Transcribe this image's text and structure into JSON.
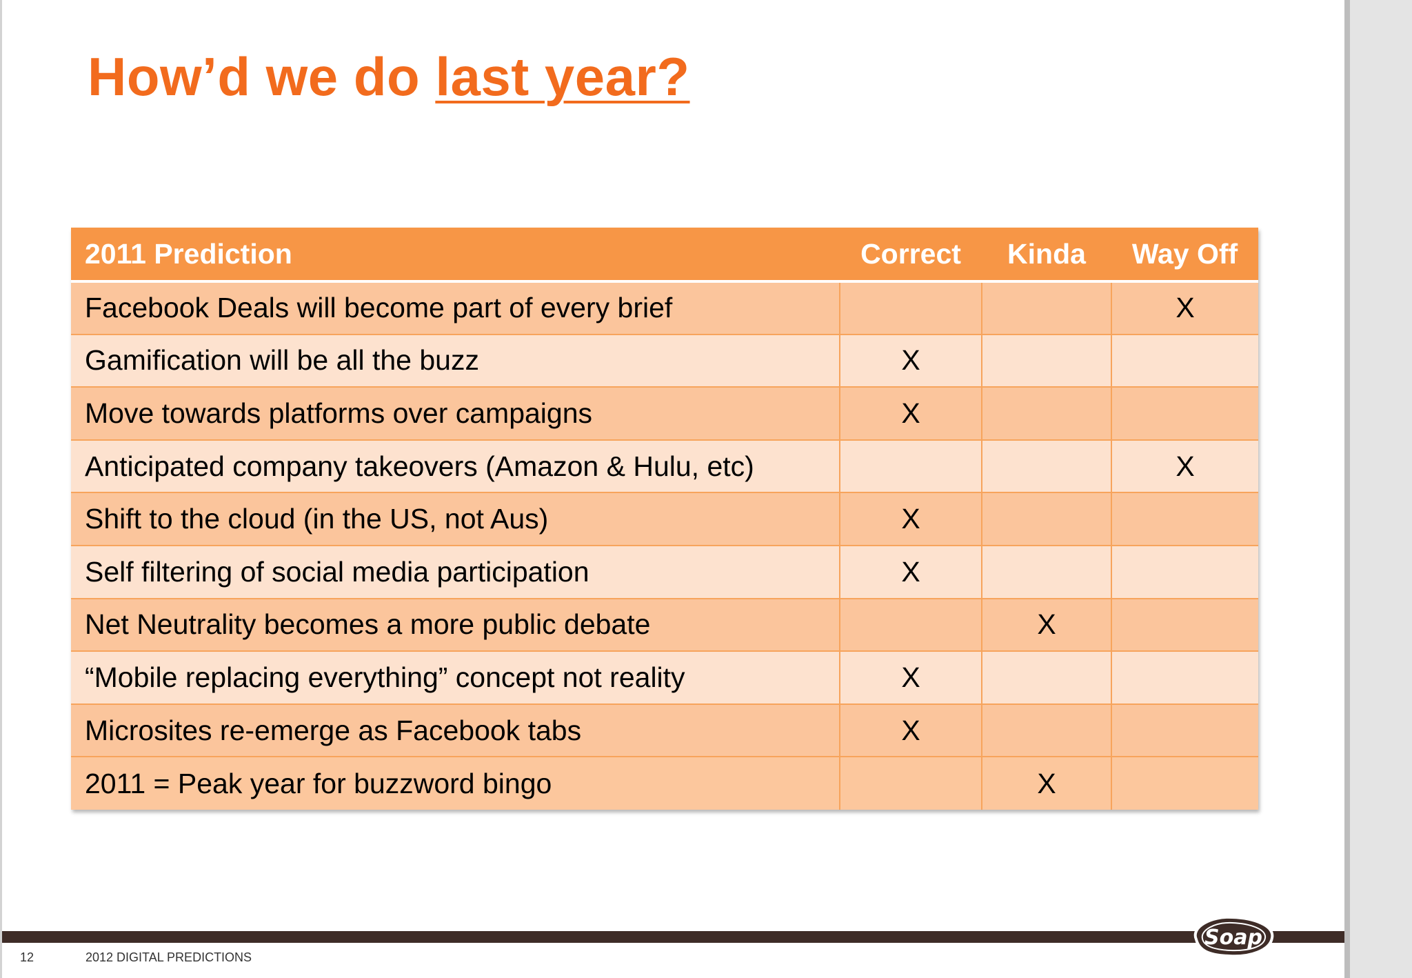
{
  "slide": {
    "title_prefix": "How’d we do ",
    "title_emphasis": "last year?",
    "page_number": "12",
    "footer_title": "2012 DIGITAL PREDICTIONS",
    "logo_text": "Soap"
  },
  "table": {
    "headers": [
      "2011 Prediction",
      "Correct",
      "Kinda",
      "Way Off"
    ],
    "rows": [
      {
        "prediction": "Facebook Deals will become part of every brief",
        "correct": "",
        "kinda": "",
        "way_off": "X"
      },
      {
        "prediction": "Gamification will be all the buzz",
        "correct": "X",
        "kinda": "",
        "way_off": ""
      },
      {
        "prediction": "Move towards platforms over campaigns",
        "correct": "X",
        "kinda": "",
        "way_off": ""
      },
      {
        "prediction": "Anticipated company takeovers (Amazon & Hulu, etc)",
        "correct": "",
        "kinda": "",
        "way_off": "X"
      },
      {
        "prediction": "Shift to the cloud (in the US, not Aus)",
        "correct": "X",
        "kinda": "",
        "way_off": ""
      },
      {
        "prediction": "Self filtering of social media participation",
        "correct": "X",
        "kinda": "",
        "way_off": ""
      },
      {
        "prediction": "Net Neutrality becomes a more public debate",
        "correct": "",
        "kinda": "X",
        "way_off": ""
      },
      {
        "prediction": "“Mobile replacing everything” concept not reality",
        "correct": "X",
        "kinda": "",
        "way_off": ""
      },
      {
        "prediction": "Microsites re-emerge as Facebook tabs",
        "correct": "X",
        "kinda": "",
        "way_off": ""
      },
      {
        "prediction": "2011 = Peak year for buzzword bingo",
        "correct": "",
        "kinda": "X",
        "way_off": ""
      }
    ]
  },
  "colors": {
    "title": "#f26b1d",
    "header_bg": "#f79646",
    "row_dark": "#fbc59c",
    "row_light": "#fde2cf",
    "footer_bar": "#3e2c27"
  }
}
